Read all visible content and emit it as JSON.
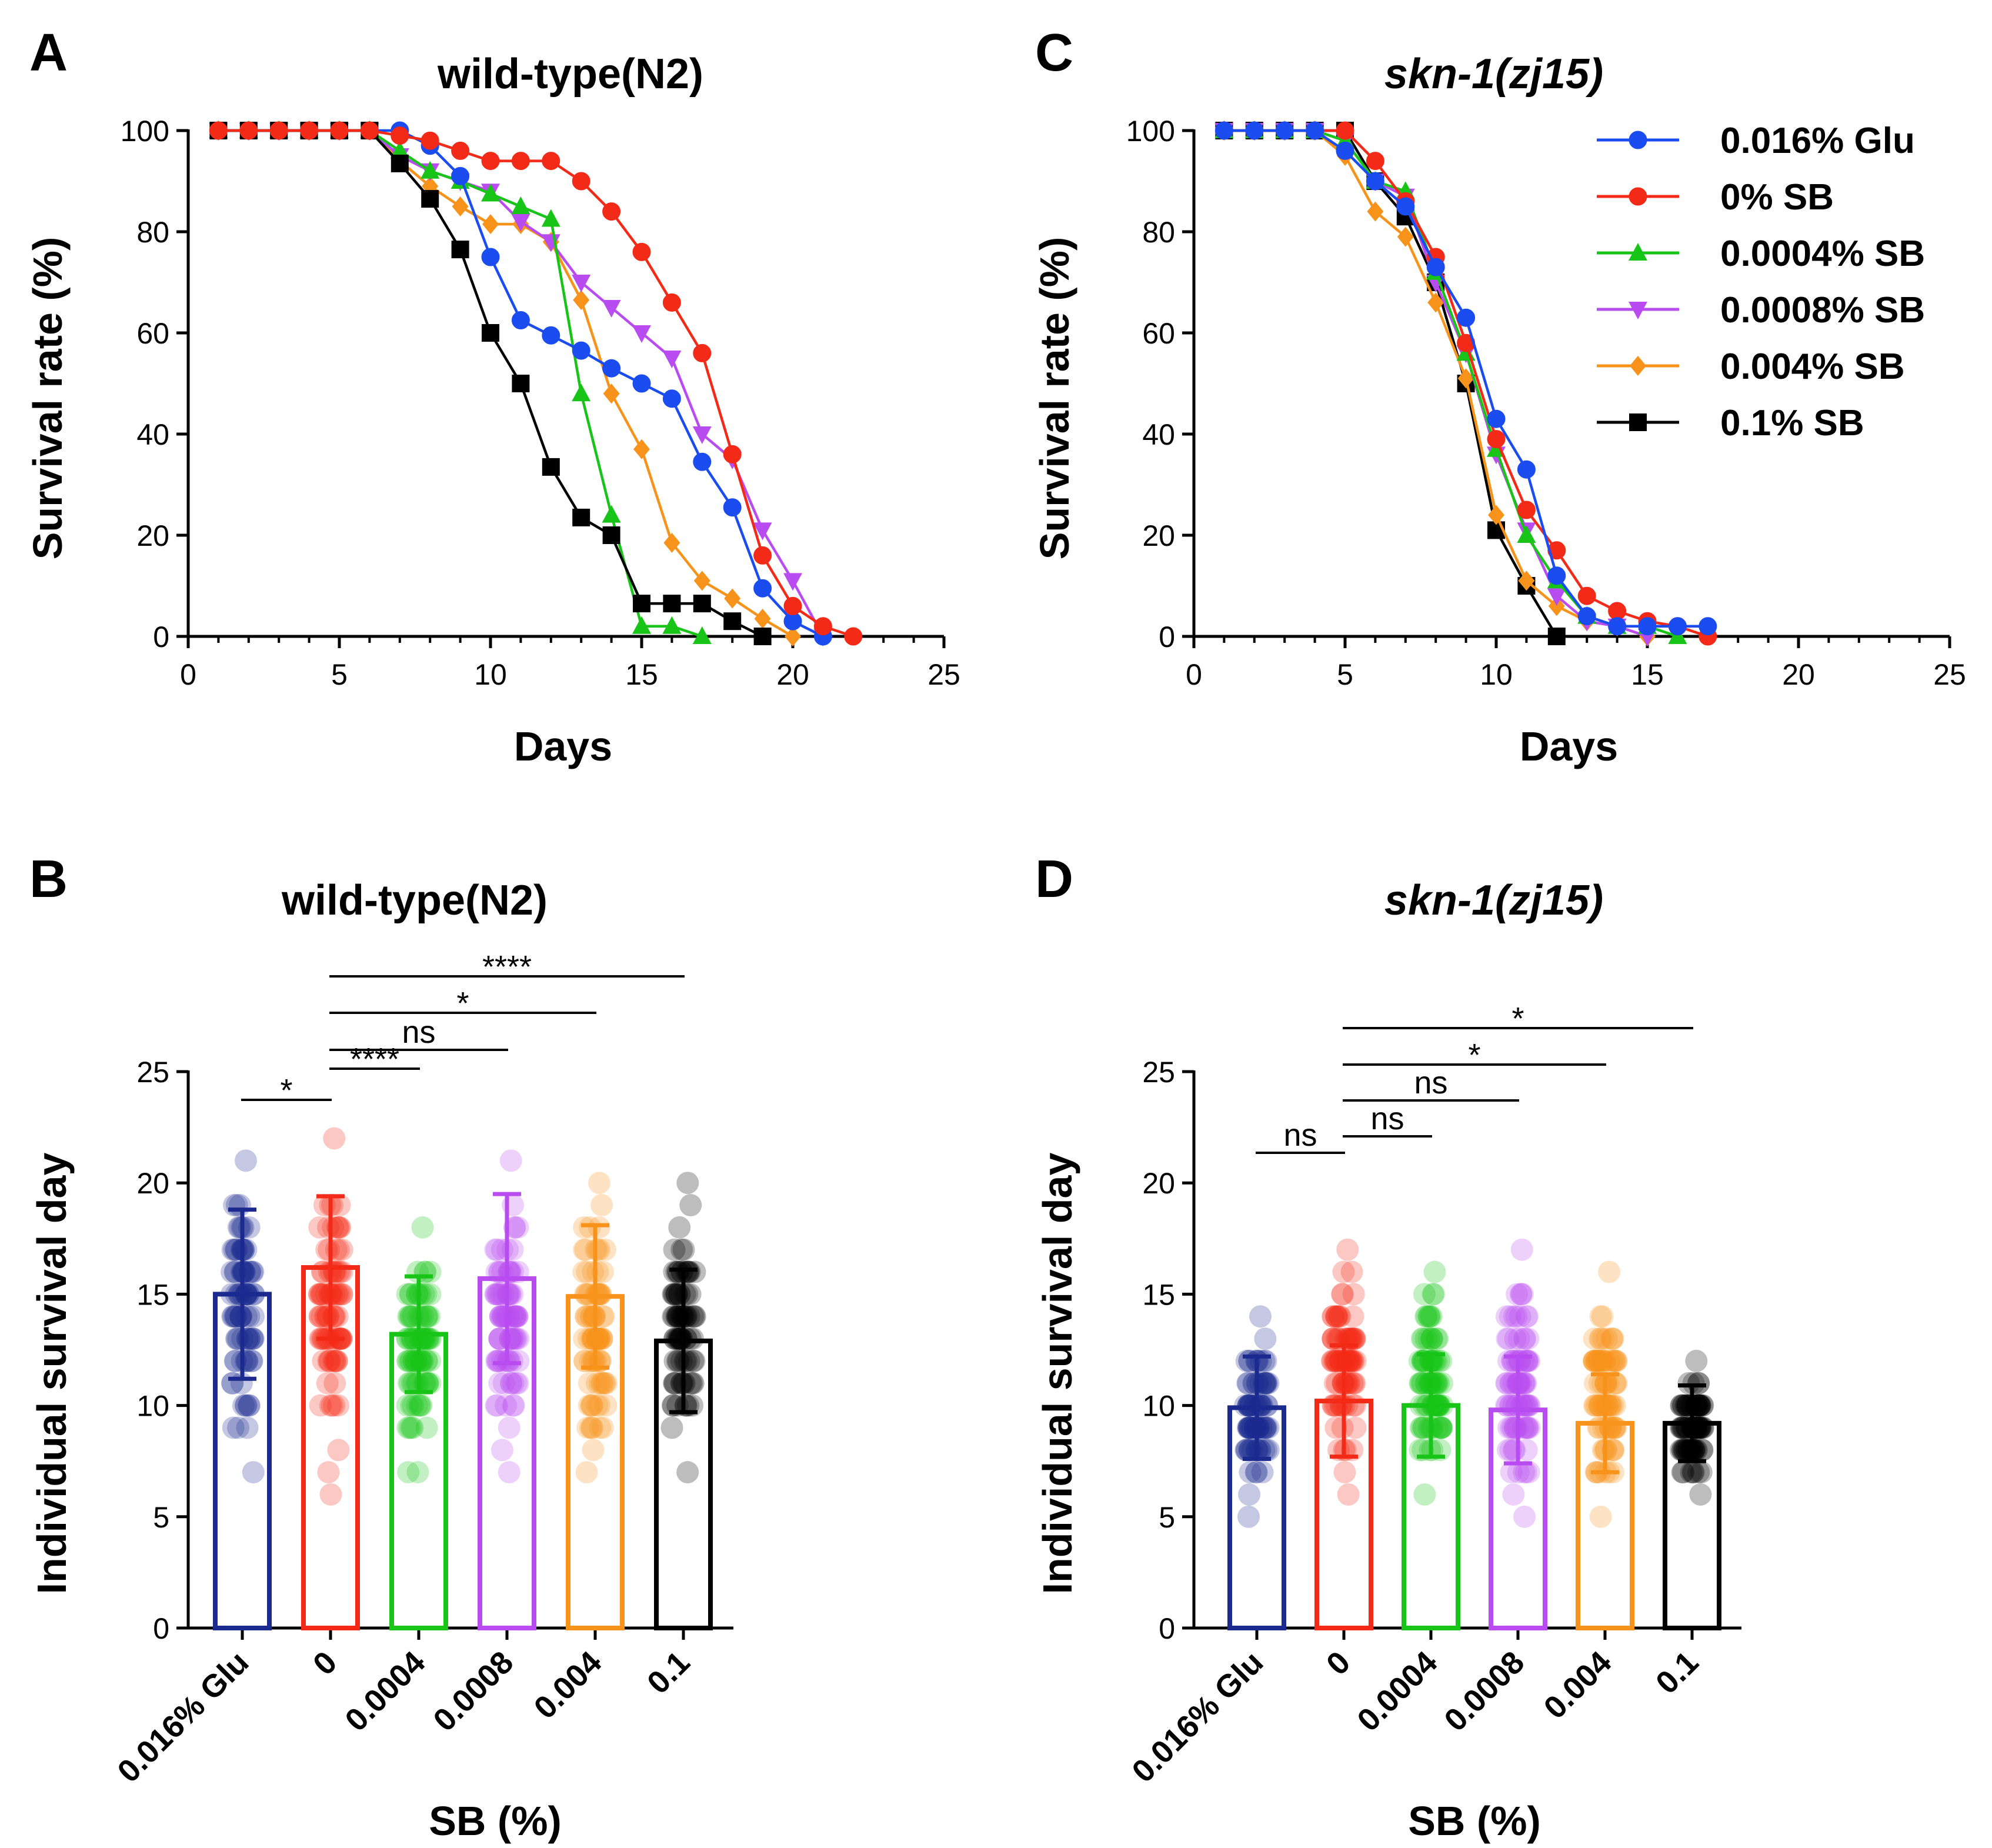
{
  "figure": {
    "panels": [
      {
        "letter": "A",
        "title": "wild-type(N2)",
        "italic": false
      },
      {
        "letter": "B",
        "title": "wild-type(N2)",
        "italic": false
      },
      {
        "letter": "C",
        "title": "skn-1(zj15)",
        "italic": true
      },
      {
        "letter": "D",
        "title": "skn-1(zj15)",
        "italic": true
      }
    ]
  },
  "chart_data": [
    {
      "panel": "A",
      "type": "line",
      "title": "wild-type(N2)",
      "xlabel": "Days",
      "ylabel": "Survival rate (%)",
      "xlim": [
        0,
        25
      ],
      "ylim": [
        0,
        100
      ],
      "xticks": [
        0,
        5,
        10,
        15,
        20,
        25
      ],
      "yticks": [
        0,
        20,
        40,
        60,
        80,
        100
      ],
      "series": [
        {
          "name": "0.016% Glu",
          "color": "#1a4cf0",
          "marker": "circle",
          "x": [
            1,
            2,
            3,
            4,
            5,
            6,
            7,
            8,
            9,
            10,
            11,
            12,
            13,
            14,
            15,
            16,
            17,
            18,
            19,
            20,
            21
          ],
          "y": [
            100,
            100,
            100,
            100,
            100,
            100,
            100,
            97,
            91,
            75,
            62.5,
            59.5,
            56.5,
            53,
            50,
            47,
            34.5,
            25.5,
            9.5,
            3,
            0
          ]
        },
        {
          "name": "0% SB",
          "color": "#f22a17",
          "marker": "circle",
          "x": [
            1,
            2,
            3,
            4,
            5,
            6,
            7,
            8,
            9,
            10,
            11,
            12,
            13,
            14,
            15,
            16,
            17,
            18,
            19,
            20,
            21,
            22
          ],
          "y": [
            100,
            100,
            100,
            100,
            100,
            100,
            99,
            98,
            96,
            94,
            94,
            94,
            90,
            84,
            76,
            66,
            56,
            36,
            16,
            6,
            2,
            0
          ]
        },
        {
          "name": "0.0004% SB",
          "color": "#19c419",
          "marker": "triangle-up",
          "x": [
            1,
            2,
            3,
            4,
            5,
            6,
            7,
            8,
            9,
            10,
            11,
            12,
            13,
            14,
            15,
            16,
            17
          ],
          "y": [
            100,
            100,
            100,
            100,
            100,
            100,
            96,
            92,
            90,
            87.5,
            85,
            82.5,
            48,
            24,
            2,
            2,
            0
          ]
        },
        {
          "name": "0.0008% SB",
          "color": "#b94cf0",
          "marker": "triangle-down",
          "x": [
            1,
            2,
            3,
            4,
            5,
            6,
            7,
            8,
            9,
            10,
            11,
            12,
            13,
            14,
            15,
            16,
            17,
            18,
            19,
            20,
            21
          ],
          "y": [
            100,
            100,
            100,
            100,
            100,
            100,
            95,
            92,
            90,
            88,
            82,
            78,
            70,
            65,
            60,
            55,
            40,
            35,
            21,
            11,
            0
          ]
        },
        {
          "name": "0.004% SB",
          "color": "#f7931a",
          "marker": "diamond",
          "x": [
            1,
            2,
            3,
            4,
            5,
            6,
            7,
            8,
            9,
            10,
            11,
            12,
            13,
            14,
            15,
            16,
            17,
            18,
            19,
            20
          ],
          "y": [
            100,
            100,
            100,
            100,
            100,
            100,
            94,
            89,
            85,
            81.5,
            81.5,
            78,
            66.5,
            48,
            37,
            18.5,
            11,
            7.5,
            3.5,
            0
          ]
        },
        {
          "name": "0.1% SB",
          "color": "#000000",
          "marker": "square",
          "x": [
            1,
            2,
            3,
            4,
            5,
            6,
            7,
            8,
            9,
            10,
            11,
            12,
            13,
            14,
            15,
            16,
            17,
            18,
            19
          ],
          "y": [
            100,
            100,
            100,
            100,
            100,
            100,
            93.5,
            86.5,
            76.5,
            60,
            50,
            33.5,
            23.5,
            20,
            6.5,
            6.5,
            6.5,
            3,
            0
          ]
        }
      ]
    },
    {
      "panel": "C",
      "type": "line",
      "title": "skn-1(zj15)",
      "xlabel": "Days",
      "ylabel": "Survival rate (%)",
      "xlim": [
        0,
        25
      ],
      "ylim": [
        0,
        100
      ],
      "xticks": [
        0,
        5,
        10,
        15,
        20,
        25
      ],
      "yticks": [
        0,
        20,
        40,
        60,
        80,
        100
      ],
      "legend": "top-right",
      "series": [
        {
          "name": "0.016% Glu",
          "color": "#1a4cf0",
          "marker": "circle",
          "x": [
            1,
            2,
            3,
            4,
            5,
            6,
            7,
            8,
            9,
            10,
            11,
            12,
            13,
            14,
            15,
            16,
            17
          ],
          "y": [
            100,
            100,
            100,
            100,
            96,
            90,
            85,
            73,
            63,
            43,
            33,
            12,
            4,
            2,
            2,
            2,
            2
          ]
        },
        {
          "name": "0% SB",
          "color": "#f22a17",
          "marker": "circle",
          "x": [
            1,
            2,
            3,
            4,
            5,
            6,
            7,
            8,
            9,
            10,
            11,
            12,
            13,
            14,
            15,
            16,
            17
          ],
          "y": [
            100,
            100,
            100,
            100,
            100,
            94,
            86,
            75,
            58,
            39,
            25,
            17,
            8,
            5,
            3,
            2,
            0
          ]
        },
        {
          "name": "0.0004% SB",
          "color": "#19c419",
          "marker": "triangle-up",
          "x": [
            1,
            2,
            3,
            4,
            5,
            6,
            7,
            8,
            9,
            10,
            11,
            12,
            13,
            14,
            15,
            16
          ],
          "y": [
            100,
            100,
            100,
            100,
            98,
            90,
            88,
            72,
            56,
            37,
            20,
            11,
            4,
            2,
            2,
            0
          ]
        },
        {
          "name": "0.0008% SB",
          "color": "#b94cf0",
          "marker": "triangle-down",
          "x": [
            1,
            2,
            3,
            4,
            5,
            6,
            7,
            8,
            9,
            10,
            11,
            12,
            13,
            14,
            15
          ],
          "y": [
            100,
            100,
            100,
            100,
            98,
            90,
            87,
            70,
            56,
            36,
            21,
            8,
            3,
            2,
            0
          ]
        },
        {
          "name": "0.004% SB",
          "color": "#f7931a",
          "marker": "diamond",
          "x": [
            1,
            2,
            3,
            4,
            5,
            6,
            7,
            8,
            9,
            10,
            11,
            12,
            13,
            14,
            15
          ],
          "y": [
            100,
            100,
            100,
            100,
            95,
            84,
            79,
            66,
            51,
            24,
            11,
            6,
            3,
            2,
            0
          ]
        },
        {
          "name": "0.1% SB",
          "color": "#000000",
          "marker": "square",
          "x": [
            1,
            2,
            3,
            4,
            5,
            6,
            7,
            8,
            9,
            10,
            11,
            12
          ],
          "y": [
            100,
            100,
            100,
            100,
            100,
            90,
            83,
            70,
            50,
            21,
            10,
            0
          ]
        }
      ]
    },
    {
      "panel": "B",
      "type": "bar",
      "title": "wild-type(N2)",
      "xlabel": "SB (%)",
      "ylabel": "Individual survival day",
      "ylim": [
        0,
        25
      ],
      "yticks": [
        0,
        5,
        10,
        15,
        20,
        25
      ],
      "categories": [
        "0.016% Glu",
        "0",
        "0.0004",
        "0.0008",
        "0.004",
        "0.1"
      ],
      "colors": [
        "#1c2a8f",
        "#f22a17",
        "#19c419",
        "#b94cf0",
        "#f7931a",
        "#000000"
      ],
      "means": [
        15.0,
        16.2,
        13.2,
        15.7,
        14.9,
        12.9
      ],
      "sd": [
        3.8,
        3.2,
        2.6,
        3.8,
        3.2,
        3.2
      ],
      "ranges": [
        [
          7,
          21
        ],
        [
          6,
          22
        ],
        [
          7,
          18
        ],
        [
          7,
          21
        ],
        [
          7,
          20
        ],
        [
          7,
          20
        ]
      ],
      "comparisons": [
        {
          "from": 0,
          "to": 1,
          "label": "*"
        },
        {
          "from": 1,
          "to": 2,
          "label": "****"
        },
        {
          "from": 1,
          "to": 3,
          "label": "ns"
        },
        {
          "from": 1,
          "to": 4,
          "label": "*"
        },
        {
          "from": 1,
          "to": 5,
          "label": "****"
        }
      ]
    },
    {
      "panel": "D",
      "type": "bar",
      "title": "skn-1(zj15)",
      "xlabel": "SB (%)",
      "ylabel": "Individual survival day",
      "ylim": [
        0,
        25
      ],
      "yticks": [
        0,
        5,
        10,
        15,
        20,
        25
      ],
      "categories": [
        "0.016% Glu",
        "0",
        "0.0004",
        "0.0008",
        "0.004",
        "0.1"
      ],
      "colors": [
        "#1c2a8f",
        "#f22a17",
        "#19c419",
        "#b94cf0",
        "#f7931a",
        "#000000"
      ],
      "means": [
        9.9,
        10.2,
        10.0,
        9.8,
        9.2,
        9.2
      ],
      "sd": [
        2.3,
        2.5,
        2.3,
        2.4,
        2.2,
        1.7
      ],
      "ranges": [
        [
          5,
          14
        ],
        [
          6,
          17
        ],
        [
          6,
          16
        ],
        [
          5,
          17
        ],
        [
          5,
          16
        ],
        [
          6,
          12
        ]
      ],
      "comparisons": [
        {
          "from": 0,
          "to": 1,
          "label": "ns"
        },
        {
          "from": 1,
          "to": 2,
          "label": "ns"
        },
        {
          "from": 1,
          "to": 3,
          "label": "ns"
        },
        {
          "from": 1,
          "to": 4,
          "label": "*"
        },
        {
          "from": 1,
          "to": 5,
          "label": "*"
        }
      ]
    }
  ]
}
